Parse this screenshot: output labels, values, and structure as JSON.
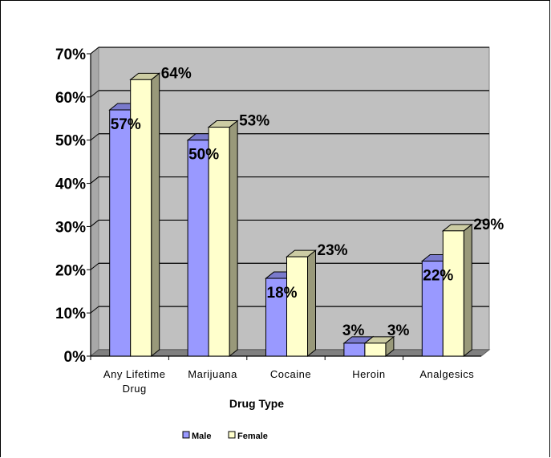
{
  "chart_data": {
    "type": "bar",
    "title": "",
    "xlabel": "Drug Type",
    "ylabel": "",
    "categories": [
      [
        "Any Lifetime",
        "Drug"
      ],
      [
        "Marijuana"
      ],
      [
        "Cocaine"
      ],
      [
        "Heroin"
      ],
      [
        "Analgesics"
      ]
    ],
    "series": [
      {
        "name": "Male",
        "values": [
          57,
          50,
          18,
          3,
          22
        ],
        "labels": [
          "57%",
          "50%",
          "18%",
          "3%",
          "22%"
        ],
        "color": "#9999ff"
      },
      {
        "name": "Female",
        "values": [
          64,
          53,
          23,
          3,
          29
        ],
        "labels": [
          "64%",
          "53%",
          "23%",
          "3%",
          "29%"
        ],
        "color": "#ffffcc"
      }
    ],
    "ylim": [
      0,
      70
    ],
    "yticks": [
      0,
      10,
      20,
      30,
      40,
      50,
      60,
      70
    ],
    "ytick_labels": [
      "0%",
      "10%",
      "20%",
      "30%",
      "40%",
      "50%",
      "60%",
      "70%"
    ],
    "grid": true,
    "plot_background": "#c0c0c0",
    "floor_color": "#808080",
    "legend_position": "bottom"
  }
}
